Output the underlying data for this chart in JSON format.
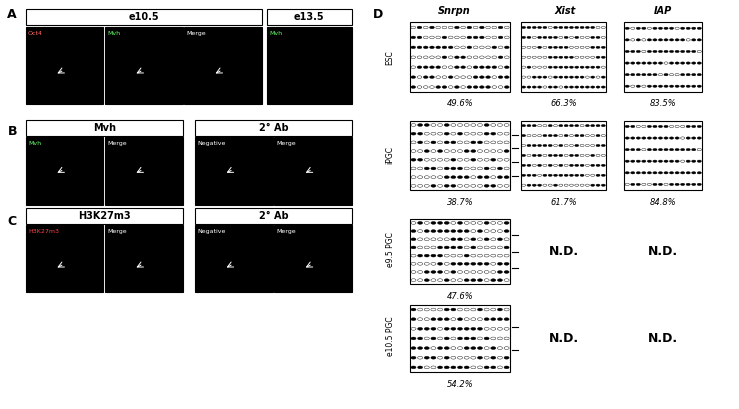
{
  "title": "",
  "panel_labels": [
    "A",
    "B",
    "C",
    "D"
  ],
  "section_A": {
    "e105_label": "e10.5",
    "e135_label": "e13.5",
    "sub_labels_e105": [
      "Oct4",
      "Mvh",
      "Merge"
    ],
    "sub_label_e135": "Mvh"
  },
  "section_B": {
    "label1": "Mvh",
    "label2": "2° Ab",
    "sub_labels1": [
      "Mvh",
      "Merge"
    ],
    "sub_labels2": [
      "Negative",
      "Merge"
    ]
  },
  "section_C": {
    "label1": "H3K27m3",
    "label2": "2° Ab",
    "sub_labels1": [
      "H3K27m3",
      "Merge"
    ],
    "sub_labels2": [
      "Negative",
      "Merge"
    ]
  },
  "section_D": {
    "col_headers": [
      "Snrpn",
      "Xist",
      "IAP"
    ],
    "row_labels": [
      "ESC",
      "iPGC",
      "e9.5 PGC",
      "e10.5 PGC"
    ],
    "percentages": [
      [
        "49.6%",
        "66.3%",
        "83.5%"
      ],
      [
        "38.7%",
        "61.7%",
        "84.8%"
      ],
      [
        "47.6%",
        "N.D.",
        "N.D."
      ],
      [
        "54.2%",
        "N.D.",
        "N.D."
      ]
    ]
  },
  "colors": {
    "black": "#000000",
    "white": "#ffffff"
  }
}
